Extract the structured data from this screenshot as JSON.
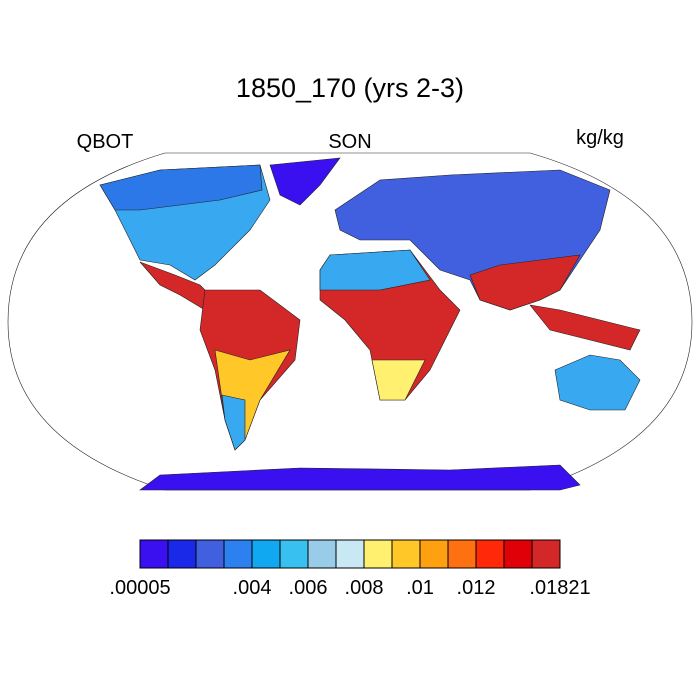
{
  "header": {
    "title": "1850_170 (yrs 2-3)",
    "left": "QBOT",
    "center": "SON",
    "right": "kg/kg"
  },
  "colorbar": {
    "colors": [
      "#3a10f0",
      "#1a28e8",
      "#4060e0",
      "#2c80f0",
      "#10a8f0",
      "#38c0f0",
      "#98cce8",
      "#c8e8f4",
      "#fff070",
      "#ffc828",
      "#ffa010",
      "#ff7010",
      "#ff2808",
      "#e00008",
      "#d42828"
    ],
    "labels": [
      ".00005",
      null,
      null,
      null,
      ".004",
      null,
      ".006",
      null,
      ".008",
      null,
      ".01",
      null,
      ".012",
      null,
      null,
      ".01821"
    ]
  }
}
